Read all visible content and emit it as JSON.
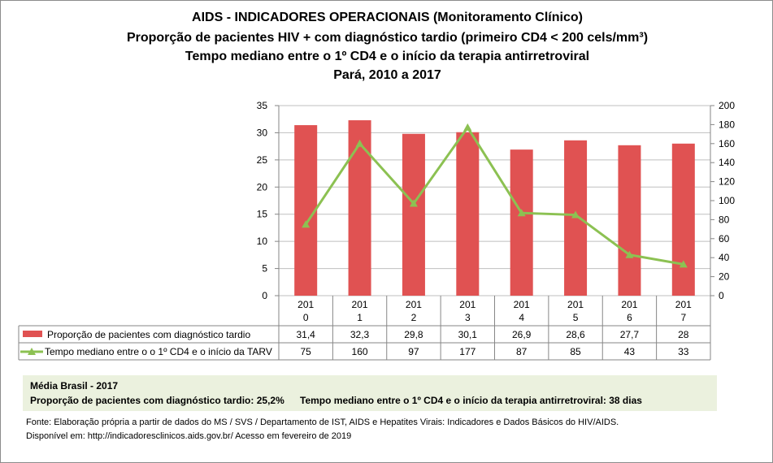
{
  "title_lines": [
    "AIDS - INDICADORES OPERACIONAIS (Monitoramento Clínico)",
    "Proporção de pacientes HIV + com diagnóstico tardio (primeiro CD4 < 200 cels/mm³)",
    "Tempo mediano entre o 1º CD4 e o início da terapia antirretroviral",
    "Pará, 2010 a 2017"
  ],
  "chart_data": {
    "type": "bar+line",
    "categories": [
      "201\n0",
      "201\n1",
      "201\n2",
      "201\n3",
      "201\n4",
      "201\n5",
      "201\n6",
      "201\n7"
    ],
    "category_lines": [
      [
        "201",
        "0"
      ],
      [
        "201",
        "1"
      ],
      [
        "201",
        "2"
      ],
      [
        "201",
        "3"
      ],
      [
        "201",
        "4"
      ],
      [
        "201",
        "5"
      ],
      [
        "201",
        "6"
      ],
      [
        "201",
        "7"
      ]
    ],
    "series": [
      {
        "name": "Proporção de pacientes com diagnóstico tardio",
        "type": "bar",
        "axis": "left",
        "color": "#E05252",
        "values": [
          31.4,
          32.3,
          29.8,
          30.1,
          26.9,
          28.6,
          27.7,
          28
        ],
        "labels": [
          "31,4",
          "32,3",
          "29,8",
          "30,1",
          "26,9",
          "28,6",
          "27,7",
          "28"
        ]
      },
      {
        "name": "Tempo mediano entre o o 1º CD4 e o início da TARV",
        "type": "line",
        "axis": "right",
        "color": "#8CC152",
        "marker": "triangle",
        "values": [
          75,
          160,
          97,
          177,
          87,
          85,
          43,
          33
        ],
        "labels": [
          "75",
          "160",
          "97",
          "177",
          "87",
          "85",
          "43",
          "33"
        ]
      }
    ],
    "left_axis": {
      "range": [
        0,
        35
      ],
      "ticks": [
        "0",
        "5",
        "10",
        "15",
        "20",
        "25",
        "30",
        "35"
      ]
    },
    "right_axis": {
      "range": [
        0,
        200
      ],
      "ticks": [
        "0",
        "20",
        "40",
        "60",
        "80",
        "100",
        "120",
        "140",
        "160",
        "180",
        "200"
      ]
    },
    "grid": true,
    "legend": "data-table"
  },
  "note": {
    "heading": "Média Brasil  - 2017",
    "left": "Proporção de pacientes com diagnóstico  tardio: 25,2%",
    "right": "Tempo mediano entre o 1º CD4 e o início da terapia antirretroviral: 38 dias"
  },
  "source": [
    "Fonte: Elaboração própria a partir de dados do  MS / SVS / Departamento de IST, AIDS e Hepatites Virais: Indicadores e Dados Básicos do HIV/AIDS.",
    "Disponível em: http://indicadoresclinicos.aids.gov.br/ Acesso em fevereiro de 2019"
  ]
}
